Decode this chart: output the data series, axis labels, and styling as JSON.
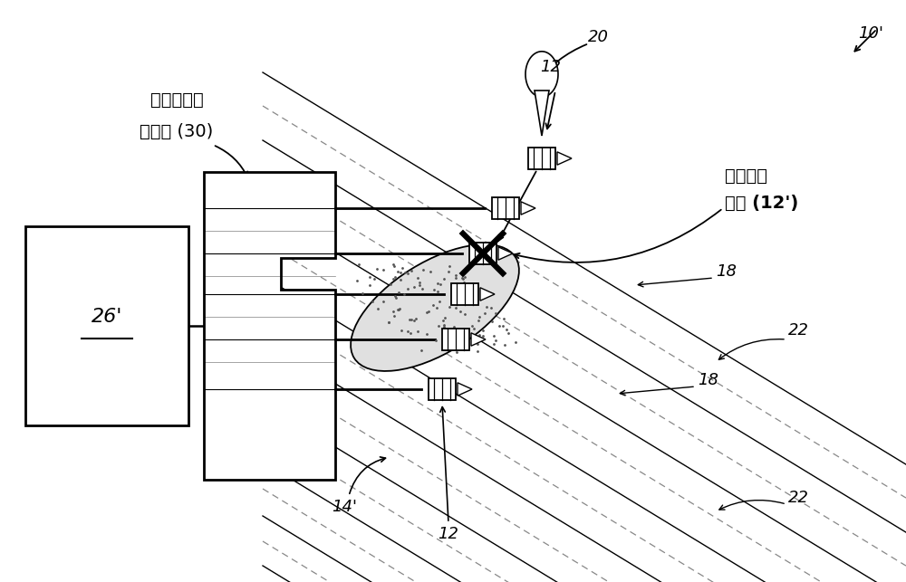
{
  "bg_color": "#ffffff",
  "line_color": "#000000",
  "dash_color": "#888888",
  "fig_width": 10.0,
  "fig_height": 6.43,
  "labels": {
    "top_right": "10'",
    "tape_20": "20",
    "head_12_top": "12",
    "head_12_bot": "12",
    "fault_line1": "发生故障",
    "fault_line2": "的头 (12')",
    "track_18_top": "18",
    "track_18_bot": "18",
    "tape_22_top": "22",
    "tape_22_bot": "22",
    "actuator_14": "14'",
    "controller_26": "26'",
    "move_head_line1": "从缺陷区域",
    "move_head_line2": "移动头 (30)"
  }
}
